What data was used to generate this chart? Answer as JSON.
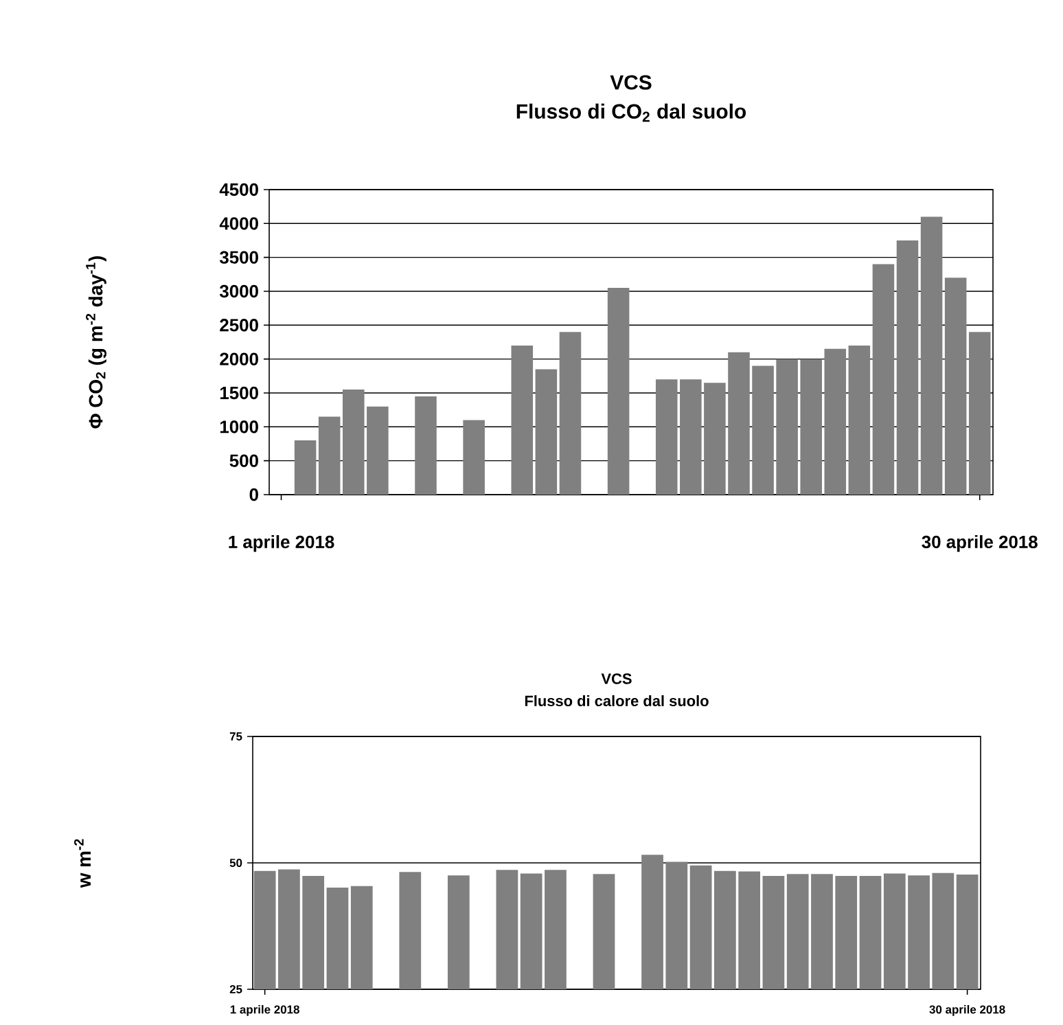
{
  "chart_data": [
    {
      "type": "bar",
      "title": "VCS",
      "subtitle": "Flusso di CO$_{2}$ dal suolo",
      "ylabel": "Φ CO$_{2}$ (g m$^{-2}$ day$^{-1}$)",
      "categories": [
        "1 aprile 2018",
        null,
        null,
        null,
        null,
        null,
        null,
        null,
        null,
        null,
        null,
        null,
        null,
        null,
        null,
        null,
        null,
        null,
        null,
        null,
        null,
        null,
        null,
        null,
        null,
        null,
        null,
        null,
        null,
        "30 aprile 2018"
      ],
      "values": [
        null,
        800,
        1150,
        1550,
        1300,
        null,
        1450,
        null,
        1100,
        null,
        2200,
        1850,
        2400,
        null,
        3050,
        null,
        1700,
        1700,
        1650,
        2100,
        1900,
        2000,
        2000,
        2150,
        2200,
        3400,
        3750,
        4100,
        3200,
        2400
      ],
      "color": "#808080",
      "ylim": [
        0,
        4500
      ],
      "yticks": [
        0,
        500,
        1000,
        1500,
        2000,
        2500,
        3000,
        3500,
        4000,
        4500
      ],
      "grid": "y"
    },
    {
      "type": "bar",
      "title": "VCS",
      "subtitle": "Flusso di calore dal suolo",
      "ylabel": "w m$^{-2}$",
      "categories": [
        "1 aprile 2018",
        null,
        null,
        null,
        null,
        null,
        null,
        null,
        null,
        null,
        null,
        null,
        null,
        null,
        null,
        null,
        null,
        null,
        null,
        null,
        null,
        null,
        null,
        null,
        null,
        null,
        null,
        null,
        null,
        "30 aprile 2018"
      ],
      "values": [
        48.4,
        48.7,
        47.4,
        45.1,
        45.4,
        null,
        48.2,
        null,
        47.5,
        null,
        48.6,
        47.9,
        48.6,
        null,
        47.8,
        null,
        51.6,
        50.2,
        49.5,
        48.4,
        48.3,
        47.4,
        47.8,
        47.8,
        47.4,
        47.4,
        47.9,
        47.5,
        48.0,
        47.7
      ],
      "color": "#808080",
      "ylim": [
        25,
        75
      ],
      "yticks": [
        25,
        50,
        75
      ],
      "grid": "y"
    }
  ]
}
